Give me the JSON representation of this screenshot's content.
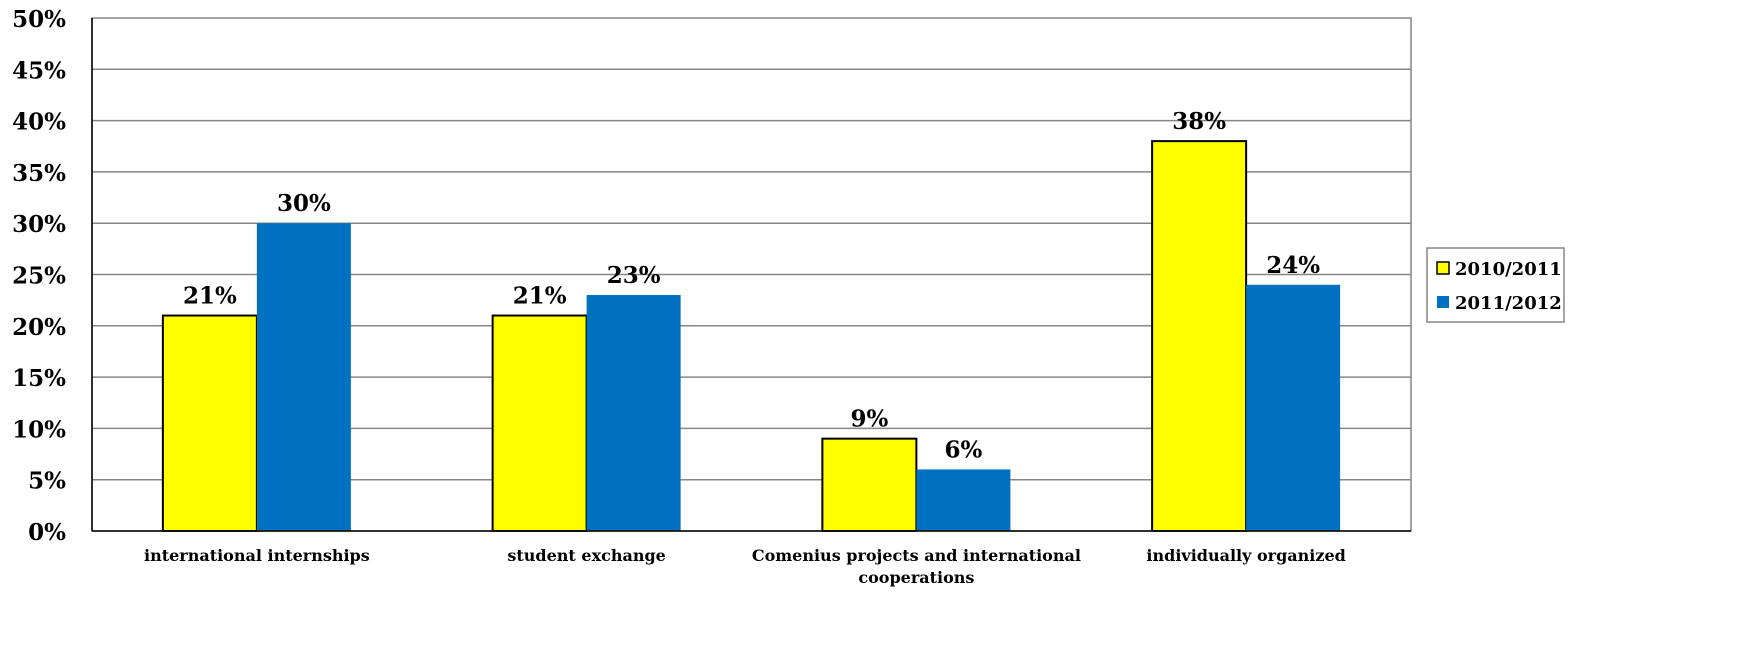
{
  "chart_data": {
    "type": "bar",
    "title": "",
    "xlabel": "",
    "ylabel": "",
    "categories": [
      "international internships",
      "student exchange",
      "Comenius projects and international cooperations",
      "individually organized"
    ],
    "series": [
      {
        "name": "2010/2011",
        "color": "#FFFF00",
        "values": [
          21,
          21,
          9,
          38
        ],
        "labels": [
          "21%",
          "21%",
          "9%",
          "38%"
        ]
      },
      {
        "name": "2011/2012",
        "color": "#0070C0",
        "values": [
          30,
          23,
          6,
          24
        ],
        "labels": [
          "30%",
          "23%",
          "6%",
          "24%"
        ]
      }
    ],
    "ylim": [
      0,
      50
    ],
    "yticks": [
      0,
      5,
      10,
      15,
      20,
      25,
      30,
      35,
      40,
      45,
      50
    ],
    "ytick_labels": [
      "0%",
      "5%",
      "10%",
      "15%",
      "20%",
      "25%",
      "30%",
      "35%",
      "40%",
      "45%",
      "50%"
    ],
    "grid": true,
    "legend_position": "right"
  }
}
